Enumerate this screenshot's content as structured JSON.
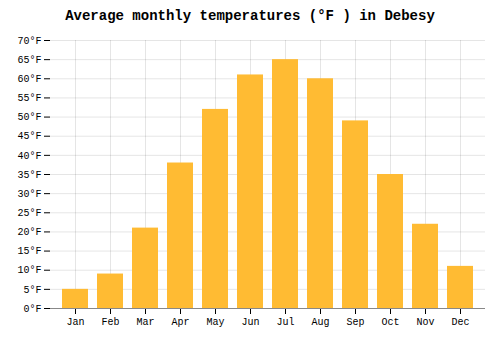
{
  "chart_data": {
    "type": "bar",
    "title": "Average monthly temperatures (°F ) in Debesy",
    "categories": [
      "Jan",
      "Feb",
      "Mar",
      "Apr",
      "May",
      "Jun",
      "Jul",
      "Aug",
      "Sep",
      "Oct",
      "Nov",
      "Dec"
    ],
    "values": [
      5,
      9,
      21,
      38,
      52,
      61,
      65,
      60,
      49,
      35,
      22,
      11
    ],
    "color": "#FFBB33",
    "ylim": [
      0,
      70
    ],
    "yticks": [
      {
        "value": 0,
        "label": "0°F"
      },
      {
        "value": 5,
        "label": "5°F"
      },
      {
        "value": 10,
        "label": "10°F"
      },
      {
        "value": 15,
        "label": "15°F"
      },
      {
        "value": 20,
        "label": "20°F"
      },
      {
        "value": 25,
        "label": "25°F"
      },
      {
        "value": 30,
        "label": "30°F"
      },
      {
        "value": 35,
        "label": "35°F"
      },
      {
        "value": 40,
        "label": "40°F"
      },
      {
        "value": 45,
        "label": "45°F"
      },
      {
        "value": 50,
        "label": "50°F"
      },
      {
        "value": 55,
        "label": "55°F"
      },
      {
        "value": 60,
        "label": "60°F"
      },
      {
        "value": 65,
        "label": "65°F"
      },
      {
        "value": 70,
        "label": "70°F"
      }
    ],
    "grid": true
  }
}
